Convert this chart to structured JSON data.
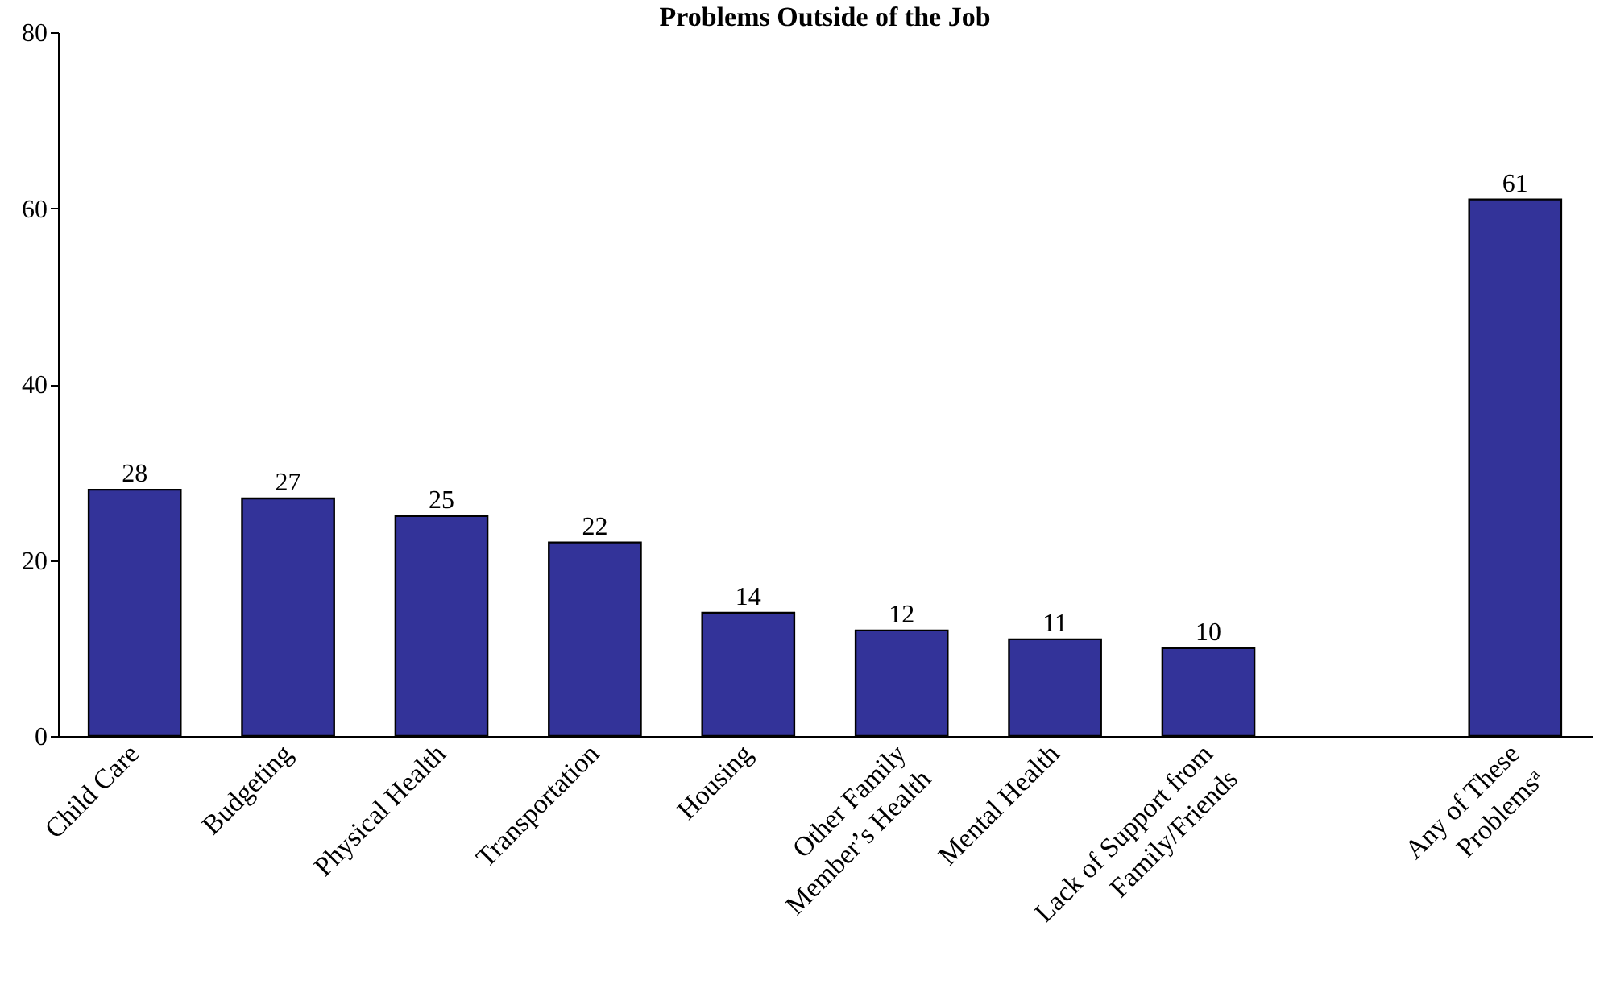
{
  "chart_data": {
    "type": "bar",
    "title": "Problems Outside of the Job",
    "categories": [
      "Child Care",
      "Budgeting",
      "Physical Health",
      "Transportation",
      "Housing",
      "Other Family Member’s Health",
      "Mental Health",
      "Lack of Support from Family/Friends",
      null,
      "Any of These Problemsᵃ"
    ],
    "values": [
      28,
      27,
      25,
      22,
      14,
      12,
      11,
      10,
      null,
      61
    ],
    "color": "#333399",
    "ylim": [
      0,
      80
    ],
    "yticks": [
      0,
      20,
      40,
      60,
      80
    ],
    "grid": false,
    "data_labels": true
  }
}
